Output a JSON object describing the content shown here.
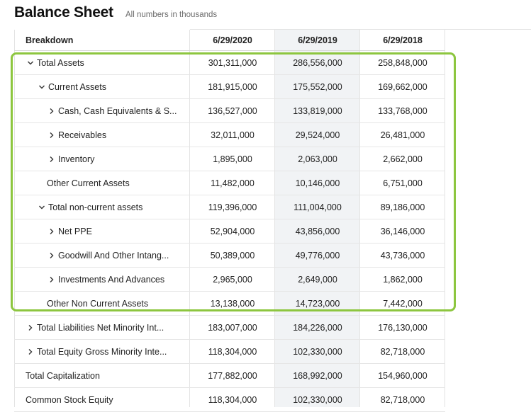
{
  "page": {
    "title": "Balance Sheet",
    "subtitle": "All numbers in thousands"
  },
  "table": {
    "header": {
      "breakdown": "Breakdown",
      "dates": [
        "6/29/2020",
        "6/29/2019",
        "6/29/2018"
      ]
    },
    "rows": [
      {
        "label": "Total Assets",
        "indent": 0,
        "toggle": "expanded",
        "values": [
          "301,311,000",
          "286,556,000",
          "258,848,000"
        ]
      },
      {
        "label": "Current Assets",
        "indent": 1,
        "toggle": "expanded",
        "values": [
          "181,915,000",
          "175,552,000",
          "169,662,000"
        ]
      },
      {
        "label": "Cash, Cash Equivalents & S...",
        "indent": 2,
        "toggle": "collapsed",
        "values": [
          "136,527,000",
          "133,819,000",
          "133,768,000"
        ]
      },
      {
        "label": "Receivables",
        "indent": 2,
        "toggle": "collapsed",
        "values": [
          "32,011,000",
          "29,524,000",
          "26,481,000"
        ]
      },
      {
        "label": "Inventory",
        "indent": 2,
        "toggle": "collapsed",
        "values": [
          "1,895,000",
          "2,063,000",
          "2,662,000"
        ]
      },
      {
        "label": "Other Current Assets",
        "indent": 2,
        "toggle": "none",
        "values": [
          "11,482,000",
          "10,146,000",
          "6,751,000"
        ]
      },
      {
        "label": "Total non-current assets",
        "indent": 1,
        "toggle": "expanded",
        "values": [
          "119,396,000",
          "111,004,000",
          "89,186,000"
        ]
      },
      {
        "label": "Net PPE",
        "indent": 2,
        "toggle": "collapsed",
        "values": [
          "52,904,000",
          "43,856,000",
          "36,146,000"
        ]
      },
      {
        "label": "Goodwill And Other Intang...",
        "indent": 2,
        "toggle": "collapsed",
        "values": [
          "50,389,000",
          "49,776,000",
          "43,736,000"
        ]
      },
      {
        "label": "Investments And Advances",
        "indent": 2,
        "toggle": "collapsed",
        "values": [
          "2,965,000",
          "2,649,000",
          "1,862,000"
        ]
      },
      {
        "label": "Other Non Current Assets",
        "indent": 2,
        "toggle": "none",
        "values": [
          "13,138,000",
          "14,723,000",
          "7,442,000"
        ]
      },
      {
        "label": "Total Liabilities Net Minority Int...",
        "indent": 0,
        "toggle": "collapsed",
        "values": [
          "183,007,000",
          "184,226,000",
          "176,130,000"
        ]
      },
      {
        "label": "Total Equity Gross Minority Inte...",
        "indent": 0,
        "toggle": "collapsed",
        "values": [
          "118,304,000",
          "102,330,000",
          "82,718,000"
        ]
      },
      {
        "label": "Total Capitalization",
        "indent": 0,
        "toggle": "none",
        "values": [
          "177,882,000",
          "168,992,000",
          "154,960,000"
        ]
      },
      {
        "label": "Common Stock Equity",
        "indent": 0,
        "toggle": "none",
        "values": [
          "118,304,000",
          "102,330,000",
          "82,718,000"
        ]
      }
    ]
  },
  "colors": {
    "highlight_border": "#8dc63f",
    "column_highlight": "#f1f3f5"
  },
  "icons": {
    "expanded": "chevron-down-icon",
    "collapsed": "chevron-right-icon"
  }
}
